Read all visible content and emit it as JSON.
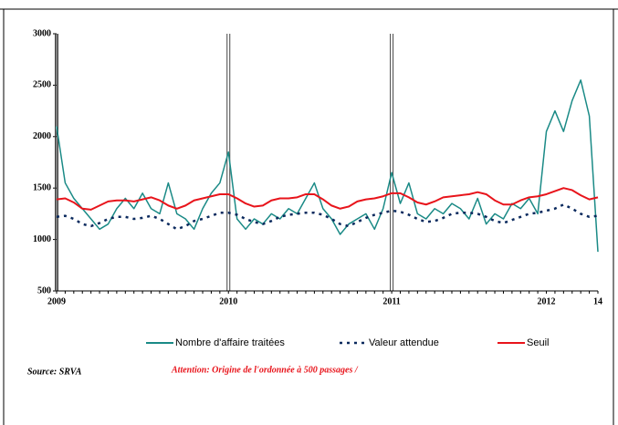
{
  "chart_data": {
    "type": "line",
    "categories": [
      "2009",
      null,
      null,
      null,
      null,
      null,
      null,
      null,
      null,
      null,
      null,
      null,
      null,
      null,
      null,
      null,
      null,
      null,
      null,
      null,
      "2010",
      null,
      null,
      null,
      null,
      null,
      null,
      null,
      null,
      null,
      null,
      null,
      null,
      null,
      null,
      null,
      null,
      null,
      null,
      "2011",
      null,
      null,
      null,
      null,
      null,
      null,
      null,
      null,
      null,
      null,
      null,
      null,
      null,
      null,
      null,
      null,
      null,
      "2012",
      null,
      null,
      null,
      null,
      null,
      "14"
    ],
    "series": [
      {
        "name": "Nombre d'affaire traitées",
        "color": "#1a8a86",
        "style": "solid",
        "values": [
          2100,
          1550,
          1400,
          1300,
          1200,
          1100,
          1150,
          1300,
          1400,
          1300,
          1450,
          1300,
          1250,
          1550,
          1250,
          1200,
          1100,
          1300,
          1450,
          1550,
          1850,
          1200,
          1100,
          1200,
          1150,
          1250,
          1200,
          1300,
          1250,
          1400,
          1550,
          1300,
          1200,
          1050,
          1150,
          1200,
          1250,
          1100,
          1300,
          1650,
          1350,
          1550,
          1250,
          1200,
          1300,
          1250,
          1350,
          1300,
          1200,
          1400,
          1150,
          1250,
          1200,
          1350,
          1300,
          1400,
          1250,
          2050,
          2250,
          2050,
          2350,
          2550,
          2200,
          880
        ]
      },
      {
        "name": "Valeur attendue",
        "color": "#0b2a5e",
        "style": "dotted",
        "values": [
          1220,
          1230,
          1200,
          1150,
          1130,
          1160,
          1200,
          1220,
          1220,
          1200,
          1210,
          1230,
          1200,
          1150,
          1100,
          1130,
          1180,
          1200,
          1230,
          1260,
          1260,
          1240,
          1200,
          1170,
          1150,
          1180,
          1220,
          1240,
          1250,
          1260,
          1260,
          1240,
          1200,
          1150,
          1130,
          1170,
          1210,
          1240,
          1260,
          1280,
          1270,
          1240,
          1200,
          1170,
          1180,
          1210,
          1250,
          1260,
          1260,
          1250,
          1220,
          1180,
          1160,
          1190,
          1220,
          1250,
          1260,
          1280,
          1300,
          1340,
          1300,
          1250,
          1220,
          1230
        ]
      },
      {
        "name": "Seuil",
        "color": "#e8141b",
        "style": "solid",
        "values": [
          1390,
          1400,
          1360,
          1300,
          1290,
          1330,
          1370,
          1380,
          1380,
          1370,
          1390,
          1410,
          1380,
          1330,
          1300,
          1330,
          1380,
          1400,
          1420,
          1440,
          1440,
          1400,
          1350,
          1320,
          1330,
          1380,
          1400,
          1400,
          1410,
          1440,
          1440,
          1390,
          1330,
          1300,
          1320,
          1370,
          1390,
          1400,
          1420,
          1450,
          1450,
          1410,
          1360,
          1340,
          1370,
          1410,
          1420,
          1430,
          1440,
          1460,
          1440,
          1380,
          1340,
          1340,
          1380,
          1410,
          1420,
          1440,
          1470,
          1500,
          1480,
          1430,
          1390,
          1410
        ]
      }
    ],
    "ylim": [
      500,
      3000
    ],
    "yticks": [
      500,
      1000,
      1500,
      2000,
      2500,
      3000
    ],
    "source": "Source: SRVA",
    "annotation": "Attention: Origine de l'ordonnée à 500 passages /"
  }
}
